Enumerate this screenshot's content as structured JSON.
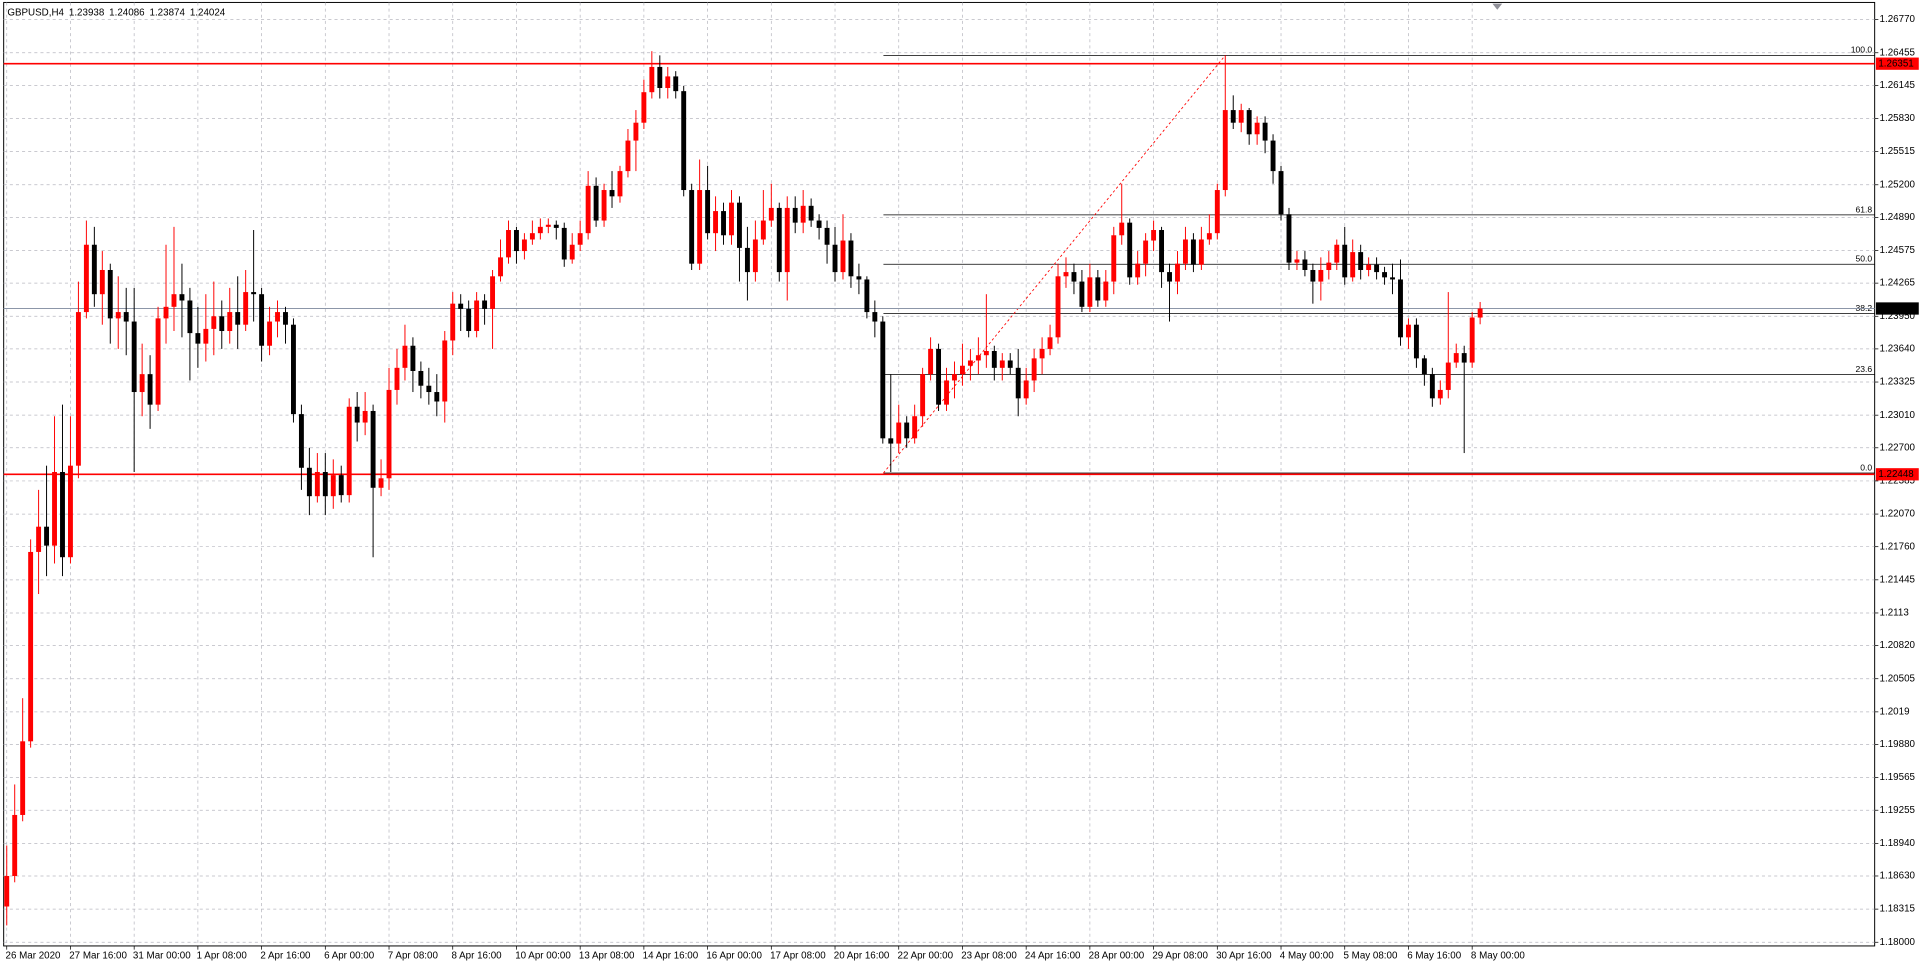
{
  "chart_data": {
    "type": "candlestick",
    "symbol": "GBPUSD,H4",
    "bull_color": "#ff0000",
    "bear_color": "#000000",
    "grid": true,
    "ylim": [
      1.17965,
      1.26933
    ],
    "yticks": [
      {
        "value": 1.2677,
        "label": "1.26770"
      },
      1.26455,
      1.26145,
      {
        "value": 1.2583,
        "label": "1.25830"
      },
      1.25515,
      {
        "value": 1.252,
        "label": "1.25200"
      },
      {
        "value": 1.2489,
        "label": "1.24890"
      },
      1.24575,
      1.24265,
      {
        "value": 1.2395,
        "label": "1.23950"
      },
      {
        "value": 1.2364,
        "label": "1.23640"
      },
      1.23325,
      {
        "value": 1.2301,
        "label": "1.23010"
      },
      {
        "value": 1.227,
        "label": "1.22700"
      },
      1.22385,
      {
        "value": 1.2207,
        "label": "1.22070"
      },
      {
        "value": 1.2176,
        "label": "1.21760"
      },
      1.21445,
      1.2113,
      {
        "value": 1.2082,
        "label": "1.20820"
      },
      1.20505,
      1.2019,
      {
        "value": 1.1988,
        "label": "1.19880"
      },
      1.19565,
      1.19255,
      {
        "value": 1.1894,
        "label": "1.18940"
      },
      {
        "value": 1.1863,
        "label": "1.18630"
      },
      1.18315,
      {
        "value": 1.18,
        "label": "1.18000"
      }
    ],
    "hlines": [
      {
        "value": 1.26351,
        "color": "#ff0000"
      },
      {
        "value": 1.22448,
        "color": "#ff0000"
      }
    ],
    "fib": {
      "low": 1.2246,
      "high": 1.2643,
      "color": "#ff0000",
      "levels": [
        {
          "value": 100,
          "label": "100.0"
        },
        61.8,
        {
          "value": 50,
          "label": "50.0"
        },
        38.2,
        23.6,
        {
          "value": 0,
          "label": "0.0"
        }
      ]
    },
    "categories": [
      "26 Mar 2020",
      null,
      null,
      null,
      null,
      null,
      null,
      null,
      "27 Mar 16:00",
      null,
      null,
      null,
      null,
      null,
      null,
      null,
      "31 Mar 00:00",
      null,
      null,
      null,
      null,
      null,
      null,
      null,
      "1 Apr 08:00",
      null,
      null,
      null,
      null,
      null,
      null,
      null,
      "2 Apr 16:00",
      null,
      null,
      null,
      null,
      null,
      null,
      null,
      "6 Apr 00:00",
      null,
      null,
      null,
      null,
      null,
      null,
      null,
      "7 Apr 08:00",
      null,
      null,
      null,
      null,
      null,
      null,
      null,
      "8 Apr 16:00",
      null,
      null,
      null,
      null,
      null,
      null,
      null,
      "10 Apr 00:00",
      null,
      null,
      null,
      null,
      null,
      null,
      null,
      "13 Apr 08:00",
      null,
      null,
      null,
      null,
      null,
      null,
      null,
      "14 Apr 16:00",
      null,
      null,
      null,
      null,
      null,
      null,
      null,
      "16 Apr 00:00",
      null,
      null,
      null,
      null,
      null,
      null,
      null,
      "17 Apr 08:00",
      null,
      null,
      null,
      null,
      null,
      null,
      null,
      "20 Apr 16:00",
      null,
      null,
      null,
      null,
      null,
      null,
      null,
      "22 Apr 00:00",
      null,
      null,
      null,
      null,
      null,
      null,
      null,
      "23 Apr 08:00",
      null,
      null,
      null,
      null,
      null,
      null,
      null,
      "24 Apr 16:00",
      null,
      null,
      null,
      null,
      null,
      null,
      null,
      "28 Apr 00:00",
      null,
      null,
      null,
      null,
      null,
      null,
      null,
      "29 Apr 08:00",
      null,
      null,
      null,
      null,
      null,
      null,
      null,
      "30 Apr 16:00",
      null,
      null,
      null,
      null,
      null,
      null,
      null,
      "4 May 00:00",
      null,
      null,
      null,
      null,
      null,
      null,
      null,
      "5 May 08:00",
      null,
      null,
      null,
      null,
      null,
      null,
      null,
      "6 May 16:00",
      null,
      null,
      null,
      null,
      null,
      null,
      null,
      "8 May 00:00",
      null
    ],
    "candles": [
      [
        1.1834,
        1.1892,
        1.1816,
        1.1863
      ],
      [
        1.1863,
        1.195,
        1.1857,
        1.1921
      ],
      [
        1.1921,
        1.2032,
        1.1915,
        1.1991
      ],
      [
        1.1991,
        1.2183,
        1.1985,
        1.2171
      ],
      [
        1.2171,
        1.223,
        1.2131,
        1.2195
      ],
      [
        1.2195,
        1.2253,
        1.2148,
        1.2177
      ],
      [
        1.2177,
        1.23,
        1.216,
        1.2247
      ],
      [
        1.2247,
        1.2311,
        1.2148,
        1.2166
      ],
      [
        1.2166,
        1.23,
        1.216,
        1.2253
      ],
      [
        1.2253,
        1.2428,
        1.2241,
        1.2399
      ],
      [
        1.2399,
        1.2486,
        1.2393,
        1.2463
      ],
      [
        1.2463,
        1.248,
        1.2404,
        1.2416
      ],
      [
        1.2416,
        1.2457,
        1.2387,
        1.2439
      ],
      [
        1.2439,
        1.2445,
        1.2369,
        1.2393
      ],
      [
        1.2393,
        1.2433,
        1.2364,
        1.2399
      ],
      [
        1.2399,
        1.2422,
        1.2358,
        1.239
      ],
      [
        1.239,
        1.2422,
        1.2247,
        1.2323
      ],
      [
        1.2323,
        1.2369,
        1.23,
        1.234
      ],
      [
        1.234,
        1.2358,
        1.2288,
        1.2311
      ],
      [
        1.2311,
        1.2404,
        1.2305,
        1.2393
      ],
      [
        1.2393,
        1.2463,
        1.2369,
        1.2404
      ],
      [
        1.2404,
        1.248,
        1.2381,
        1.2416
      ],
      [
        1.2416,
        1.2445,
        1.2375,
        1.241
      ],
      [
        1.241,
        1.2422,
        1.2334,
        1.2379
      ],
      [
        1.2379,
        1.2404,
        1.2346,
        1.2369
      ],
      [
        1.2369,
        1.2416,
        1.2352,
        1.2383
      ],
      [
        1.2383,
        1.2428,
        1.2358,
        1.2395
      ],
      [
        1.2395,
        1.241,
        1.2364,
        1.2381
      ],
      [
        1.2381,
        1.2422,
        1.2369,
        1.2399
      ],
      [
        1.2399,
        1.2433,
        1.2364,
        1.2387
      ],
      [
        1.2387,
        1.2439,
        1.2381,
        1.2418
      ],
      [
        1.2418,
        1.2477,
        1.239,
        1.2416
      ],
      [
        1.2416,
        1.2422,
        1.2352,
        1.2367
      ],
      [
        1.2367,
        1.2404,
        1.2358,
        1.239
      ],
      [
        1.239,
        1.241,
        1.2375,
        1.2399
      ],
      [
        1.2399,
        1.2404,
        1.2369,
        1.2387
      ],
      [
        1.2387,
        1.2393,
        1.2294,
        1.2302
      ],
      [
        1.2302,
        1.2311,
        1.223,
        1.2251
      ],
      [
        1.2251,
        1.227,
        1.2206,
        1.2224
      ],
      [
        1.2224,
        1.2265,
        1.2218,
        1.2247
      ],
      [
        1.2247,
        1.2265,
        1.2206,
        1.2224
      ],
      [
        1.2224,
        1.2259,
        1.2212,
        1.2244
      ],
      [
        1.2244,
        1.2253,
        1.2218,
        1.2225
      ],
      [
        1.2225,
        1.2317,
        1.2218,
        1.2309
      ],
      [
        1.2309,
        1.2323,
        1.2276,
        1.2294
      ],
      [
        1.2294,
        1.2323,
        1.2282,
        1.2305
      ],
      [
        1.2305,
        1.2311,
        1.2166,
        1.2232
      ],
      [
        1.2232,
        1.2259,
        1.2224,
        1.2241
      ],
      [
        1.2241,
        1.2346,
        1.223,
        1.2325
      ],
      [
        1.2325,
        1.2364,
        1.2311,
        1.2346
      ],
      [
        1.2346,
        1.2387,
        1.2334,
        1.2367
      ],
      [
        1.2367,
        1.2375,
        1.2323,
        1.2343
      ],
      [
        1.2343,
        1.2352,
        1.2317,
        1.2329
      ],
      [
        1.2329,
        1.2346,
        1.2311,
        1.2323
      ],
      [
        1.2323,
        1.234,
        1.23,
        1.2314
      ],
      [
        1.2314,
        1.2381,
        1.2294,
        1.2372
      ],
      [
        1.2372,
        1.2418,
        1.2358,
        1.2407
      ],
      [
        1.2407,
        1.2416,
        1.2381,
        1.2402
      ],
      [
        1.2402,
        1.241,
        1.2375,
        1.2381
      ],
      [
        1.2381,
        1.2418,
        1.2375,
        1.241
      ],
      [
        1.241,
        1.2416,
        1.2387,
        1.2402
      ],
      [
        1.2402,
        1.2439,
        1.2364,
        1.2433
      ],
      [
        1.2433,
        1.2468,
        1.2428,
        1.2451
      ],
      [
        1.2451,
        1.2486,
        1.2445,
        1.2477
      ],
      [
        1.2477,
        1.248,
        1.2445,
        1.2457
      ],
      [
        1.2457,
        1.2474,
        1.2449,
        1.2468
      ],
      [
        1.2468,
        1.2486,
        1.2463,
        1.2474
      ],
      [
        1.2474,
        1.2488,
        1.2468,
        1.248
      ],
      [
        1.248,
        1.2488,
        1.2474,
        1.2482
      ],
      [
        1.2482,
        1.2486,
        1.2468,
        1.2479
      ],
      [
        1.2479,
        1.2484,
        1.2442,
        1.2449
      ],
      [
        1.2449,
        1.2474,
        1.2445,
        1.2463
      ],
      [
        1.2463,
        1.2486,
        1.2457,
        1.2474
      ],
      [
        1.2474,
        1.2533,
        1.2468,
        1.2519
      ],
      [
        1.2519,
        1.2527,
        1.248,
        1.2486
      ],
      [
        1.2486,
        1.2521,
        1.248,
        1.2515
      ],
      [
        1.2515,
        1.2533,
        1.2498,
        1.2509
      ],
      [
        1.2509,
        1.2538,
        1.2503,
        1.2533
      ],
      [
        1.2533,
        1.2573,
        1.2527,
        1.2562
      ],
      [
        1.2562,
        1.2591,
        1.2533,
        1.2579
      ],
      [
        1.2579,
        1.262,
        1.2573,
        1.2608
      ],
      [
        1.2608,
        1.2647,
        1.2602,
        1.2632
      ],
      [
        1.2632,
        1.2643,
        1.2602,
        1.2612
      ],
      [
        1.2612,
        1.2632,
        1.2602,
        1.2623
      ],
      [
        1.2623,
        1.2628,
        1.2602,
        1.2609
      ],
      [
        1.2609,
        1.2614,
        1.2509,
        1.2515
      ],
      [
        1.2515,
        1.2521,
        1.2439,
        1.2445
      ],
      [
        1.2445,
        1.2544,
        1.2439,
        1.2515
      ],
      [
        1.2515,
        1.2538,
        1.2468,
        1.2474
      ],
      [
        1.2474,
        1.2509,
        1.2457,
        1.2495
      ],
      [
        1.2495,
        1.2503,
        1.2463,
        1.2472
      ],
      [
        1.2472,
        1.2515,
        1.2463,
        1.2503
      ],
      [
        1.2503,
        1.2509,
        1.2428,
        1.246
      ],
      [
        1.246,
        1.248,
        1.241,
        1.2437
      ],
      [
        1.2437,
        1.2486,
        1.2428,
        1.2468
      ],
      [
        1.2468,
        1.2515,
        1.2463,
        1.2486
      ],
      [
        1.2486,
        1.2521,
        1.248,
        1.2498
      ],
      [
        1.2498,
        1.2503,
        1.2428,
        1.2437
      ],
      [
        1.2437,
        1.2509,
        1.241,
        1.2498
      ],
      [
        1.2498,
        1.2509,
        1.2474,
        1.2484
      ],
      [
        1.2484,
        1.2515,
        1.2474,
        1.25
      ],
      [
        1.25,
        1.2507,
        1.248,
        1.2486
      ],
      [
        1.2486,
        1.2492,
        1.2468,
        1.2479
      ],
      [
        1.2479,
        1.2486,
        1.2445,
        1.2463
      ],
      [
        1.2463,
        1.248,
        1.2428,
        1.2437
      ],
      [
        1.2437,
        1.2492,
        1.243,
        1.2467
      ],
      [
        1.2467,
        1.2474,
        1.2422,
        1.2433
      ],
      [
        1.2433,
        1.2445,
        1.2416,
        1.243
      ],
      [
        1.243,
        1.2433,
        1.2393,
        1.2399
      ],
      [
        1.2399,
        1.241,
        1.2375,
        1.239
      ],
      [
        1.239,
        1.2395,
        1.2274,
        1.2279
      ],
      [
        1.2279,
        1.234,
        1.2247,
        1.2274
      ],
      [
        1.2274,
        1.2311,
        1.2265,
        1.2294
      ],
      [
        1.2294,
        1.23,
        1.227,
        1.2279
      ],
      [
        1.2279,
        1.2311,
        1.2274,
        1.23
      ],
      [
        1.23,
        1.2346,
        1.229,
        1.234
      ],
      [
        1.234,
        1.2375,
        1.2334,
        1.2364
      ],
      [
        1.2364,
        1.2369,
        1.2305,
        1.2311
      ],
      [
        1.2311,
        1.2346,
        1.2305,
        1.2334
      ],
      [
        1.2334,
        1.2352,
        1.2317,
        1.234
      ],
      [
        1.234,
        1.2369,
        1.2329,
        1.2348
      ],
      [
        1.2348,
        1.2364,
        1.2334,
        1.2353
      ],
      [
        1.2353,
        1.2375,
        1.234,
        1.2358
      ],
      [
        1.2358,
        1.2416,
        1.2346,
        1.2362
      ],
      [
        1.2362,
        1.2367,
        1.2334,
        1.2346
      ],
      [
        1.2346,
        1.236,
        1.2334,
        1.2353
      ],
      [
        1.2353,
        1.236,
        1.234,
        1.2346
      ],
      [
        1.2346,
        1.2364,
        1.23,
        1.2317
      ],
      [
        1.2317,
        1.2346,
        1.2311,
        1.2334
      ],
      [
        1.2334,
        1.2364,
        1.2323,
        1.2355
      ],
      [
        1.2355,
        1.2375,
        1.234,
        1.2364
      ],
      [
        1.2364,
        1.2387,
        1.2358,
        1.2375
      ],
      [
        1.2375,
        1.2445,
        1.2369,
        1.2433
      ],
      [
        1.2433,
        1.2451,
        1.2422,
        1.2437
      ],
      [
        1.2437,
        1.2445,
        1.2416,
        1.2428
      ],
      [
        1.2428,
        1.2439,
        1.2399,
        1.2404
      ],
      [
        1.2404,
        1.2445,
        1.2399,
        1.2432
      ],
      [
        1.2432,
        1.2439,
        1.2404,
        1.241
      ],
      [
        1.241,
        1.2439,
        1.2404,
        1.2428
      ],
      [
        1.2428,
        1.248,
        1.2416,
        1.2472
      ],
      [
        1.2472,
        1.2521,
        1.2463,
        1.2484
      ],
      [
        1.2484,
        1.2488,
        1.2425,
        1.2432
      ],
      [
        1.2432,
        1.2457,
        1.2425,
        1.2445
      ],
      [
        1.2445,
        1.2474,
        1.2433,
        1.2467
      ],
      [
        1.2467,
        1.2486,
        1.2457,
        1.2477
      ],
      [
        1.2477,
        1.248,
        1.2422,
        1.2437
      ],
      [
        1.2437,
        1.2445,
        1.239,
        1.2428
      ],
      [
        1.2428,
        1.2457,
        1.2416,
        1.2445
      ],
      [
        1.2445,
        1.248,
        1.2439,
        1.2468
      ],
      [
        1.2468,
        1.2474,
        1.2437,
        1.2444
      ],
      [
        1.2444,
        1.248,
        1.2439,
        1.2468
      ],
      [
        1.2468,
        1.2492,
        1.2463,
        1.2474
      ],
      [
        1.2474,
        1.2521,
        1.2468,
        1.2515
      ],
      [
        1.2515,
        1.2643,
        1.2509,
        1.2591
      ],
      [
        1.2591,
        1.2605,
        1.2573,
        1.2579
      ],
      [
        1.2579,
        1.2597,
        1.257,
        1.2591
      ],
      [
        1.2591,
        1.2593,
        1.2558,
        1.2568
      ],
      [
        1.2568,
        1.2585,
        1.2558,
        1.2579
      ],
      [
        1.2579,
        1.2585,
        1.255,
        1.2562
      ],
      [
        1.2562,
        1.2568,
        1.2521,
        1.2533
      ],
      [
        1.2533,
        1.2538,
        1.2486,
        1.2492
      ],
      [
        1.2492,
        1.2498,
        1.2439,
        1.2446
      ],
      [
        1.2446,
        1.2457,
        1.2439,
        1.2449
      ],
      [
        1.2449,
        1.2457,
        1.2433,
        1.2439
      ],
      [
        1.2439,
        1.2445,
        1.2407,
        1.2428
      ],
      [
        1.2428,
        1.2451,
        1.241,
        1.2439
      ],
      [
        1.2439,
        1.2457,
        1.243,
        1.2446
      ],
      [
        1.2446,
        1.2468,
        1.2439,
        1.2463
      ],
      [
        1.2463,
        1.248,
        1.2425,
        1.2432
      ],
      [
        1.2432,
        1.2468,
        1.2428,
        1.2456
      ],
      [
        1.2456,
        1.2463,
        1.243,
        1.2439
      ],
      [
        1.2439,
        1.2451,
        1.2433,
        1.2444
      ],
      [
        1.2444,
        1.2451,
        1.243,
        1.2437
      ],
      [
        1.2437,
        1.2442,
        1.2425,
        1.2432
      ],
      [
        1.2432,
        1.2445,
        1.2416,
        1.243
      ],
      [
        1.243,
        1.2449,
        1.2367,
        1.2375
      ],
      [
        1.2375,
        1.2393,
        1.2364,
        1.2387
      ],
      [
        1.2387,
        1.2393,
        1.2346,
        1.2355
      ],
      [
        1.2355,
        1.2358,
        1.2329,
        1.234
      ],
      [
        1.234,
        1.2346,
        1.2309,
        1.2317
      ],
      [
        1.2317,
        1.2334,
        1.2311,
        1.2325
      ],
      [
        1.2325,
        1.2418,
        1.2317,
        1.2351
      ],
      [
        1.2351,
        1.2369,
        1.2346,
        1.236
      ],
      [
        1.236,
        1.2367,
        1.2265,
        1.2351
      ],
      [
        1.2351,
        1.2399,
        1.2346,
        1.23938
      ],
      [
        1.23938,
        1.24086,
        1.23874,
        1.24024
      ]
    ]
  }
}
